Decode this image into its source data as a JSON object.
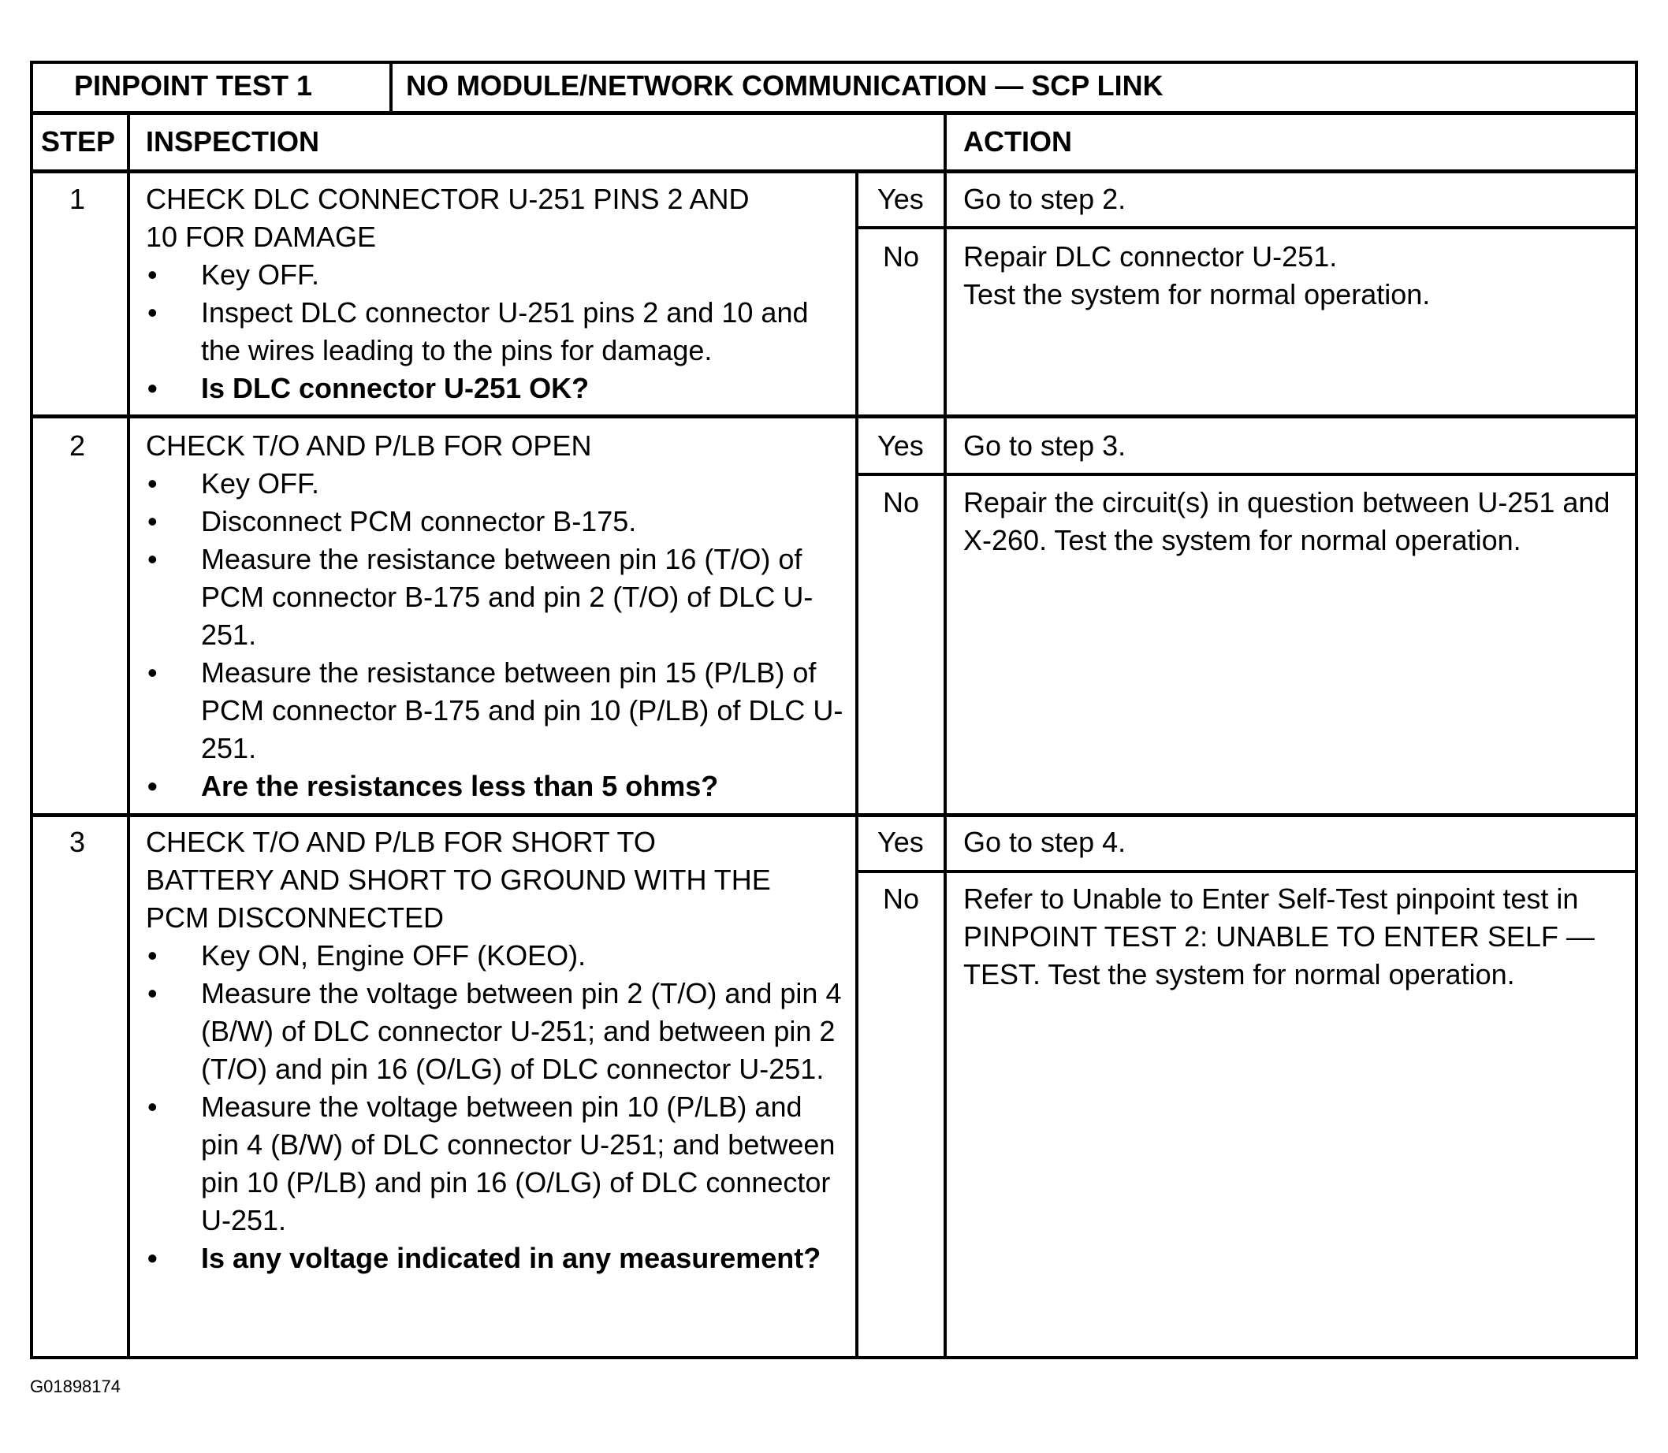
{
  "title": {
    "test": "PINPOINT TEST 1",
    "name": "NO MODULE/NETWORK COMMUNICATION — SCP LINK"
  },
  "headers": {
    "step": "STEP",
    "inspection": "INSPECTION",
    "action": "ACTION"
  },
  "steps": [
    {
      "num": "1",
      "heading": [
        "CHECK DLC CONNECTOR U-251 PINS 2 AND",
        "10 FOR DAMAGE"
      ],
      "bullets": [
        "Key OFF.",
        "Inspect DLC connector U-251 pins 2 and 10 and the wires leading to the pins for damage."
      ],
      "question": "Is DLC connector U-251 OK?",
      "yes_label": "Yes",
      "yes_action": "Go to step 2.",
      "no_label": "No",
      "no_action": [
        "Repair DLC connector U-251.",
        "Test the system for normal operation."
      ]
    },
    {
      "num": "2",
      "heading": [
        "CHECK T/O AND P/LB FOR OPEN"
      ],
      "bullets": [
        "Key OFF.",
        "Disconnect PCM connector B-175.",
        "Measure the resistance between pin 16 (T/O) of PCM connector B-175 and pin 2 (T/O) of DLC U-251.",
        "Measure the resistance between pin 15 (P/LB) of PCM connector B-175 and pin 10 (P/LB) of DLC U-251."
      ],
      "question": "Are the resistances less than 5 ohms?",
      "yes_label": "Yes",
      "yes_action": "Go to step 3.",
      "no_label": "No",
      "no_action": [
        "Repair the circuit(s) in question between U-251 and X-260. Test the system for normal operation."
      ]
    },
    {
      "num": "3",
      "heading": [
        "CHECK T/O AND P/LB FOR SHORT TO",
        "BATTERY AND SHORT TO GROUND WITH THE",
        "PCM DISCONNECTED"
      ],
      "bullets": [
        "Key ON, Engine OFF (KOEO).",
        "Measure the voltage between pin 2 (T/O) and pin 4 (B/W) of DLC connector U-251; and between pin 2 (T/O) and pin 16 (O/LG) of DLC connector U-251.",
        "Measure the voltage between pin 10 (P/LB) and pin 4 (B/W) of DLC connector U-251; and between pin 10 (P/LB) and pin 16 (O/LG) of DLC connector U-251."
      ],
      "question": "Is any voltage indicated in any measurement?",
      "yes_label": "Yes",
      "yes_action": "Go to step 4.",
      "no_label": "No",
      "no_action": [
        "Refer to Unable to Enter Self-Test pinpoint test in PINPOINT TEST 2: UNABLE TO ENTER SELF — TEST.  Test the system for normal operation."
      ]
    }
  ],
  "figure_id": "G01898174"
}
